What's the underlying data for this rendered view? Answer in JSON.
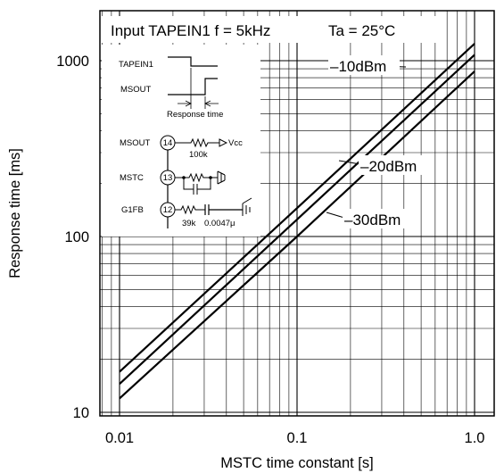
{
  "chart_data": {
    "type": "line",
    "title": "Input TAPEIN1 f = 5kHz",
    "condition": "Ta = 25°C",
    "xlabel": "MSTC time constant [s]",
    "ylabel": "Response time [ms]",
    "x_scale": "log",
    "y_scale": "log",
    "xlim": [
      0.01,
      1.0
    ],
    "ylim": [
      10,
      1000
    ],
    "x_ticks": [
      "0.01",
      "0.1",
      "1.0"
    ],
    "y_ticks": [
      "10",
      "100",
      "1000"
    ],
    "grid": true,
    "series": [
      {
        "name": "–10dBm",
        "x": [
          0.01,
          0.1,
          1.0
        ],
        "y": [
          17,
          145,
          1250
        ]
      },
      {
        "name": "–20dBm",
        "x": [
          0.01,
          0.1,
          1.0
        ],
        "y": [
          14.5,
          125,
          1080
        ]
      },
      {
        "name": "–30dBm",
        "x": [
          0.01,
          0.1,
          1.0
        ],
        "y": [
          12,
          100,
          870
        ]
      }
    ]
  },
  "inset": {
    "timing_labels": [
      "TAPEIN1",
      "MSOUT"
    ],
    "response_time_label": "Response time",
    "pins": [
      {
        "label": "MSOUT",
        "num": "14"
      },
      {
        "label": "MSTC",
        "num": "13"
      },
      {
        "label": "G1FB",
        "num": "12"
      }
    ],
    "resistor_100k": "100k",
    "vcc": "Vcc",
    "resistor_39k": "39k",
    "cap_value": "0.0047μ"
  }
}
